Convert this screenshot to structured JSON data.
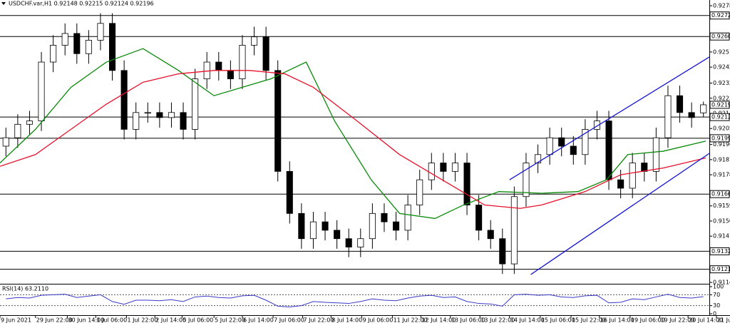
{
  "chart_data": {
    "type": "candlestick",
    "title": "USDCHF.var,H1  0.92148 0.92215 0.92124 0.92196",
    "xlim": [
      0,
      60
    ],
    "ylim": [
      0.91136,
      0.92819
    ],
    "yticks": [
      0.92785,
      {
        "value": 0.9251,
        "label": "0.92510"
      },
      {
        "value": 0.9242,
        "label": "0.92420"
      },
      0.92325,
      0.92235,
      0.92145,
      0.92055,
      {
        "value": 0.9196,
        "label": "0.91960"
      },
      {
        "value": 0.9187,
        "label": "0.91870"
      },
      {
        "value": 0.9178,
        "label": "0.91780"
      },
      0.91595,
      0.91505,
      0.91415,
      {
        "value": 0.9114,
        "label": "0.91140"
      }
    ],
    "xticks": [
      {
        "value": 0,
        "label": "9 Jun 2021"
      },
      {
        "value": 3.0,
        "label": "29 Jun 22:00"
      },
      {
        "value": 5.7,
        "label": "30 Jun 14:00"
      },
      {
        "value": 8.1,
        "label": "1 Jul 06:00"
      },
      {
        "value": 10.7,
        "label": "1 Jul 22:00"
      },
      {
        "value": 13.1,
        "label": "2 Jul 14:00"
      },
      {
        "value": 15.4,
        "label": "5 Jul 06:00"
      },
      {
        "value": 18.1,
        "label": "5 Jul 22:00"
      },
      {
        "value": 20.5,
        "label": "6 Jul 14:00"
      },
      {
        "value": 23.1,
        "label": "7 Jul 06:00"
      },
      {
        "value": 25.6,
        "label": "7 Jul 22:00"
      },
      {
        "value": 28.0,
        "label": "8 Jul 14:00"
      },
      {
        "value": 30.6,
        "label": "9 Jul 06:00"
      },
      {
        "value": 33.2,
        "label": "11 Jul 22:00"
      },
      {
        "value": 35.6,
        "label": "12 Jul 14:00"
      },
      {
        "value": 38.1,
        "label": "13 Jul 06:00"
      },
      {
        "value": 40.6,
        "label": "13 Jul 22:00"
      },
      {
        "value": 43.1,
        "label": "14 Jul 14:00"
      },
      {
        "value": 45.7,
        "label": "15 Jul 06:00"
      },
      {
        "value": 48.3,
        "label": "15 Jul 22:00"
      },
      {
        "value": 50.7,
        "label": "16 Jul 14:00"
      },
      {
        "value": 53.3,
        "label": "19 Jul 06:00"
      },
      {
        "value": 55.8,
        "label": "19 Jul 22:00"
      },
      {
        "value": 58.2,
        "label": "20 Jul 14:00"
      },
      {
        "value": 60.6,
        "label": "21 Jul 06:00"
      }
    ],
    "open": [
      0.9195,
      0.92,
      0.9208,
      0.921,
      0.9245,
      0.9255,
      0.9262,
      0.925,
      0.9258,
      0.9268,
      0.924,
      0.9205,
      0.9215,
      0.9215,
      0.9212,
      0.9215,
      0.9205,
      0.9235,
      0.9245,
      0.924,
      0.9235,
      0.9255,
      0.926,
      0.924,
      0.918,
      0.9155,
      0.914,
      0.915,
      0.9145,
      0.914,
      0.9135,
      0.914,
      0.9155,
      0.915,
      0.9145,
      0.916,
      0.9175,
      0.9185,
      0.918,
      0.9185,
      0.916,
      0.9145,
      0.914,
      0.9125,
      0.9165,
      0.9185,
      0.919,
      0.92,
      0.9195,
      0.919,
      0.9205,
      0.921,
      0.9175,
      0.917,
      0.9185,
      0.918,
      0.92,
      0.9225,
      0.9215,
      0.92148
    ],
    "high": [
      0.9206,
      0.9214,
      0.9216,
      0.9251,
      0.9261,
      0.9268,
      0.9268,
      0.9264,
      0.9274,
      0.9274,
      0.9246,
      0.9221,
      0.9221,
      0.9221,
      0.9221,
      0.9221,
      0.9241,
      0.9251,
      0.9251,
      0.9246,
      0.9261,
      0.9266,
      0.9266,
      0.9246,
      0.9186,
      0.9161,
      0.9156,
      0.9156,
      0.9151,
      0.9146,
      0.9146,
      0.9161,
      0.9161,
      0.9156,
      0.9166,
      0.9181,
      0.9191,
      0.9191,
      0.9191,
      0.9191,
      0.9166,
      0.9151,
      0.9146,
      0.9171,
      0.9191,
      0.9196,
      0.9206,
      0.9206,
      0.9201,
      0.9211,
      0.9216,
      0.9216,
      0.9181,
      0.9191,
      0.9191,
      0.9206,
      0.9231,
      0.9231,
      0.9221,
      0.92215
    ],
    "low": [
      0.9189,
      0.9194,
      0.9202,
      0.9204,
      0.9239,
      0.9249,
      0.9244,
      0.9244,
      0.9252,
      0.9234,
      0.9199,
      0.9199,
      0.9209,
      0.9206,
      0.9206,
      0.9199,
      0.9199,
      0.9229,
      0.9234,
      0.9229,
      0.9229,
      0.9249,
      0.9234,
      0.9174,
      0.9149,
      0.9134,
      0.9134,
      0.9139,
      0.9134,
      0.9129,
      0.9129,
      0.9134,
      0.9144,
      0.9139,
      0.9139,
      0.9154,
      0.9169,
      0.9174,
      0.9174,
      0.9154,
      0.9139,
      0.9134,
      0.9119,
      0.9119,
      0.9159,
      0.9179,
      0.9184,
      0.9189,
      0.9184,
      0.9184,
      0.9199,
      0.9169,
      0.9164,
      0.9164,
      0.9174,
      0.9174,
      0.9194,
      0.9209,
      0.9206,
      0.92124
    ],
    "close": [
      0.92,
      0.9208,
      0.921,
      0.9245,
      0.9255,
      0.9262,
      0.925,
      0.9258,
      0.9268,
      0.924,
      0.9205,
      0.9215,
      0.9215,
      0.9212,
      0.9215,
      0.9205,
      0.9235,
      0.9245,
      0.924,
      0.9235,
      0.9255,
      0.926,
      0.924,
      0.918,
      0.9155,
      0.914,
      0.915,
      0.9145,
      0.914,
      0.9135,
      0.914,
      0.9155,
      0.915,
      0.9145,
      0.916,
      0.9175,
      0.9185,
      0.918,
      0.9185,
      0.916,
      0.9145,
      0.914,
      0.9125,
      0.9165,
      0.9185,
      0.919,
      0.92,
      0.9195,
      0.919,
      0.9205,
      0.921,
      0.9175,
      0.917,
      0.9185,
      0.918,
      0.92,
      0.9225,
      0.9215,
      0.9212,
      0.92196
    ],
    "series": [
      {
        "color": "#0a8a0a",
        "x": [
          0,
          3.0,
          6.0,
          9.0,
          12.1,
          15.1,
          18.1,
          20.5,
          22.9,
          25.9,
          28.3,
          31.4,
          33.8,
          36.8,
          39.2,
          42.2,
          45.8,
          48.9,
          51.3,
          53.1,
          56.1,
          59.7
        ],
        "values": [
          0.9185,
          0.9205,
          0.923,
          0.9245,
          0.9253,
          0.924,
          0.9225,
          0.923,
          0.9235,
          0.9245,
          0.921,
          0.9175,
          0.9155,
          0.9152,
          0.916,
          0.9168,
          0.9167,
          0.9168,
          0.9175,
          0.919,
          0.9192,
          0.9198
        ]
      },
      {
        "color": "#e8102a",
        "x": [
          0,
          3.0,
          6.0,
          9.0,
          12.1,
          15.1,
          18.1,
          21.1,
          24.1,
          26.5,
          30.2,
          33.8,
          37.4,
          41.0,
          44.0,
          45.8,
          49.5,
          52.5,
          56.1,
          59.7
        ],
        "values": [
          0.9183,
          0.919,
          0.9205,
          0.922,
          0.9233,
          0.9238,
          0.924,
          0.924,
          0.9238,
          0.923,
          0.921,
          0.919,
          0.9175,
          0.916,
          0.9158,
          0.916,
          0.9168,
          0.9178,
          0.9182,
          0.9188
        ]
      }
    ],
    "channels": [
      {
        "color": "#1414d2",
        "x": [
          43.1,
          60
        ],
        "values": [
          0.9175,
          0.9248
        ]
      },
      {
        "color": "#1414d2",
        "x": [
          44.9,
          60
        ],
        "values": [
          0.91187,
          0.91907
        ]
      }
    ],
    "levels": [
      0.92727,
      0.92602,
      0.92123,
      0.91997,
      0.91665,
      0.91325,
      0.91218
    ],
    "current": 0.92196,
    "rsi": {
      "label": "RSI(14) 63.2110",
      "color": "#3a3ac8",
      "ylim": [
        0,
        100
      ],
      "yticks": [
        100,
        70,
        30,
        0
      ],
      "values": [
        55,
        60,
        58,
        68,
        70,
        72,
        60,
        65,
        70,
        45,
        35,
        50,
        50,
        48,
        52,
        45,
        62,
        65,
        60,
        58,
        66,
        68,
        50,
        28,
        25,
        30,
        45,
        42,
        40,
        38,
        45,
        55,
        50,
        48,
        58,
        65,
        68,
        60,
        62,
        45,
        38,
        36,
        28,
        70,
        72,
        68,
        70,
        62,
        60,
        66,
        68,
        40,
        42,
        55,
        52,
        62,
        72,
        60,
        58,
        63.211
      ]
    }
  }
}
